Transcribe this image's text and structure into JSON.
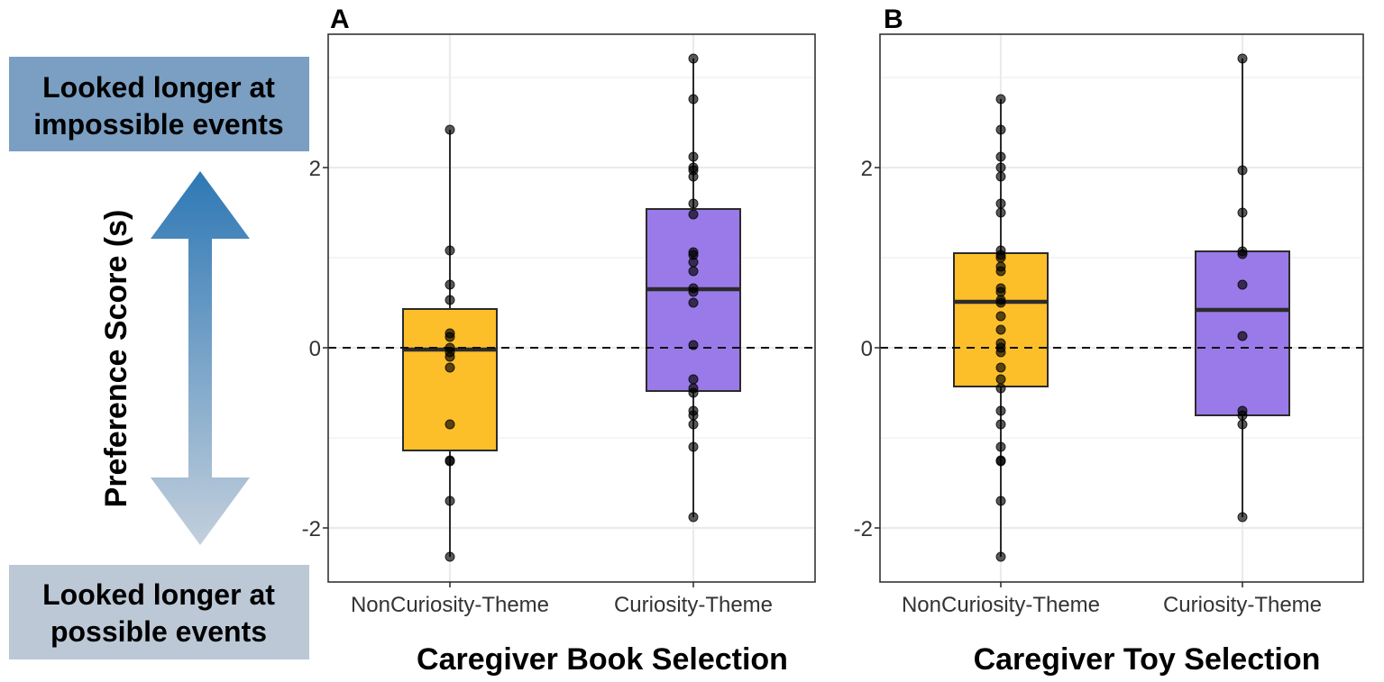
{
  "side_annotation": {
    "top_line1": "Looked longer at",
    "top_line2": "impossible events",
    "bottom_line1": "Looked longer at",
    "bottom_line2": "possible events",
    "ylabel": "Preference Score (s)",
    "top_box_color": "#7a9fc3",
    "bottom_box_color": "#bcc8d6",
    "arrow_color_top": "#2e78b5",
    "arrow_color_bottom": "#c3cfdc"
  },
  "chart_data": [
    {
      "type": "box",
      "panel_label": "A",
      "title": "",
      "xlabel": "Caregiver Book Selection",
      "ylabel": "Preference Score (s)",
      "ylim": [
        -2.6,
        3.5
      ],
      "yticks": [
        "-2",
        "0",
        "2"
      ],
      "reference_line": 0,
      "grid": true,
      "categories": [
        "NonCuriosity-Theme",
        "Curiosity-Theme"
      ],
      "boxes": [
        {
          "category": "NonCuriosity-Theme",
          "color": "#fcbf2a",
          "q1": -1.14,
          "median": -0.02,
          "q3": 0.43,
          "whisker_low": -2.32,
          "whisker_high": 2.42,
          "points": [
            2.42,
            1.08,
            0.7,
            0.53,
            0.16,
            0.12,
            0.0,
            -0.05,
            -0.1,
            -0.22,
            -0.85,
            -1.25,
            -1.26,
            -1.7,
            -2.32
          ]
        },
        {
          "category": "Curiosity-Theme",
          "color": "#9a7ae9",
          "q1": -0.48,
          "median": 0.65,
          "q3": 1.54,
          "whisker_low": -1.88,
          "whisker_high": 3.21,
          "points": [
            3.21,
            2.76,
            2.12,
            2.0,
            1.97,
            1.9,
            1.6,
            1.48,
            1.06,
            1.03,
            0.95,
            0.85,
            0.66,
            0.62,
            0.5,
            0.03,
            -0.35,
            -0.45,
            -0.5,
            -0.7,
            -0.75,
            -0.85,
            -1.1,
            -1.88
          ]
        }
      ]
    },
    {
      "type": "box",
      "panel_label": "B",
      "title": "",
      "xlabel": "Caregiver Toy Selection",
      "ylabel": "Preference Score (s)",
      "ylim": [
        -2.6,
        3.5
      ],
      "yticks": [
        "-2",
        "0",
        "2"
      ],
      "reference_line": 0,
      "grid": true,
      "categories": [
        "NonCuriosity-Theme",
        "Curiosity-Theme"
      ],
      "boxes": [
        {
          "category": "NonCuriosity-Theme",
          "color": "#fcbf2a",
          "q1": -0.43,
          "median": 0.51,
          "q3": 1.05,
          "whisker_low": -2.32,
          "whisker_high": 2.76,
          "points": [
            2.76,
            2.42,
            2.12,
            2.0,
            1.9,
            1.6,
            1.5,
            1.08,
            1.03,
            1.0,
            0.9,
            0.85,
            0.66,
            0.62,
            0.53,
            0.5,
            0.35,
            0.2,
            0.05,
            0.0,
            -0.05,
            -0.22,
            -0.35,
            -0.45,
            -0.7,
            -0.85,
            -1.1,
            -1.25,
            -1.26,
            -1.7,
            -2.32
          ]
        },
        {
          "category": "Curiosity-Theme",
          "color": "#9a7ae9",
          "q1": -0.75,
          "median": 0.42,
          "q3": 1.07,
          "whisker_low": -1.88,
          "whisker_high": 3.21,
          "points": [
            3.21,
            1.97,
            1.5,
            1.07,
            1.04,
            0.7,
            0.13,
            -0.7,
            -0.75,
            -0.85,
            -1.88
          ]
        }
      ]
    }
  ]
}
